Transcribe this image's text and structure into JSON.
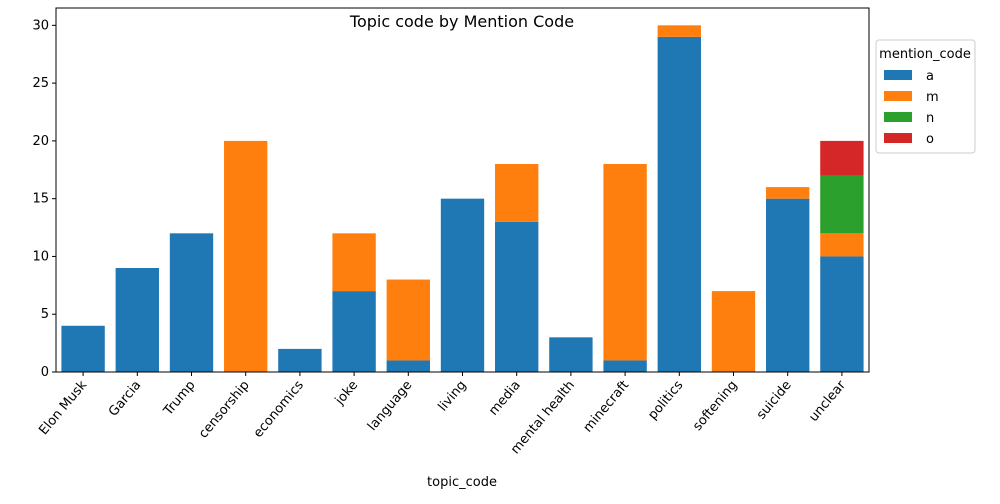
{
  "chart_data": {
    "type": "bar",
    "stacked": true,
    "title": "Topic code by Mention Code",
    "xlabel": "topic_code",
    "ylabel": "",
    "ylim": [
      0,
      31.5
    ],
    "yticks": [
      0,
      5,
      10,
      15,
      20,
      25,
      30
    ],
    "grid": false,
    "legend": {
      "title": "mention_code",
      "placement": "outside-top-right"
    },
    "categories": [
      "Elon Musk",
      "Garcia",
      "Trump",
      "censorship",
      "economics",
      "joke",
      "language",
      "living",
      "media",
      "mental health",
      "minecraft",
      "politics",
      "softening",
      "suicide",
      "unclear"
    ],
    "series": [
      {
        "name": "a",
        "color": "#1f77b4",
        "values": [
          4,
          9,
          12,
          0,
          2,
          7,
          1,
          15,
          13,
          3,
          1,
          29,
          0,
          15,
          10
        ]
      },
      {
        "name": "m",
        "color": "#ff7f0e",
        "values": [
          0,
          0,
          0,
          20,
          0,
          5,
          7,
          0,
          5,
          0,
          17,
          1,
          7,
          1,
          2
        ]
      },
      {
        "name": "n",
        "color": "#2ca02c",
        "values": [
          0,
          0,
          0,
          0,
          0,
          0,
          0,
          0,
          0,
          0,
          0,
          0,
          0,
          0,
          5
        ]
      },
      {
        "name": "o",
        "color": "#d62728",
        "values": [
          0,
          0,
          0,
          0,
          0,
          0,
          0,
          0,
          0,
          0,
          0,
          0,
          0,
          0,
          3
        ]
      }
    ]
  }
}
